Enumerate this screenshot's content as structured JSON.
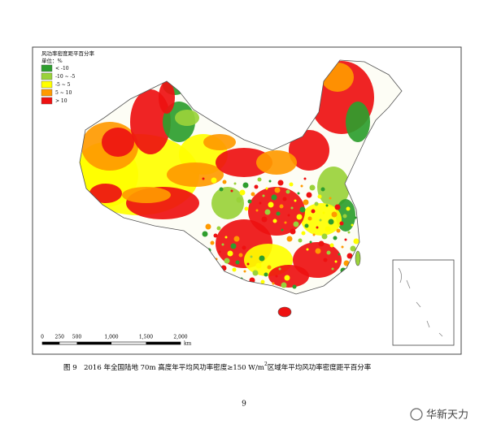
{
  "legend": {
    "title": "风功率密度距平百分率",
    "unit": "单位：%",
    "items": [
      {
        "label": "< -10",
        "color": "#2e9e2e"
      },
      {
        "label": "-10 ~ -5",
        "color": "#9ad23a"
      },
      {
        "label": "-5 ~ 5",
        "color": "#ffff00"
      },
      {
        "label": "5 ~ 10",
        "color": "#ff9a00"
      },
      {
        "label": "> 10",
        "color": "#ee1111"
      }
    ]
  },
  "scale_bar": {
    "labels": [
      "0",
      "250",
      "500",
      "1,000",
      "1,500",
      "2,000"
    ],
    "unit": "km"
  },
  "caption": {
    "prefix": "图 9　2016 年全国陆地 70m 高度年平均风功率密度≥150 W/m",
    "sup": "2",
    "suffix": "区域年平均风功率密度距平百分率"
  },
  "page_number": "9",
  "watermark": "华新天力"
}
